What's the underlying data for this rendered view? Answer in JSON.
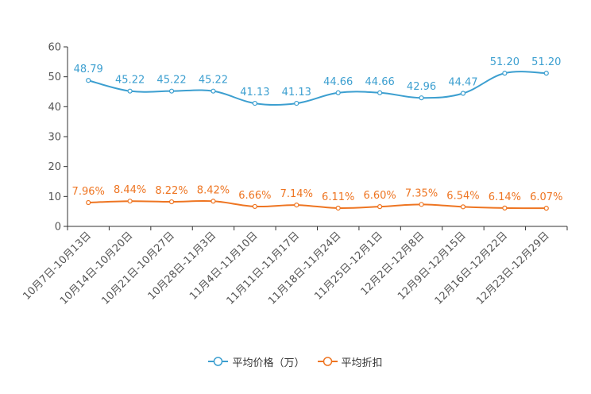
{
  "chart_data": {
    "type": "line",
    "categories": [
      "10月7日-10月13日",
      "10月14日-10月20日",
      "10月21日-10月27日",
      "10月28日-11月3日",
      "11月4日-11月10日",
      "11月11日-11月17日",
      "11月18日-11月24日",
      "11月25日-12月1日",
      "12月2日-12月8日",
      "12月9日-12月15日",
      "12月16日-12月22日",
      "12月23日-12月29日"
    ],
    "ylim": [
      0,
      60
    ],
    "yticks": [
      0,
      10,
      20,
      30,
      40,
      50,
      60
    ],
    "series": [
      {
        "name": "平均价格（万）",
        "color": "#3c9fd0",
        "values": [
          48.79,
          45.22,
          45.22,
          45.22,
          41.13,
          41.13,
          44.66,
          44.66,
          42.96,
          44.47,
          51.2,
          51.2
        ],
        "labels": [
          "48.79",
          "45.22",
          "45.22",
          "45.22",
          "41.13",
          "41.13",
          "44.66",
          "44.66",
          "42.96",
          "44.47",
          "51.20",
          "51.20"
        ]
      },
      {
        "name": "平均折扣",
        "color": "#ee7522",
        "values": [
          7.96,
          8.44,
          8.22,
          8.42,
          6.66,
          7.14,
          6.11,
          6.6,
          7.35,
          6.54,
          6.14,
          6.07
        ],
        "labels": [
          "7.96%",
          "8.44%",
          "8.22%",
          "8.42%",
          "6.66%",
          "7.14%",
          "6.11%",
          "6.60%",
          "7.35%",
          "6.54%",
          "6.14%",
          "6.07%"
        ]
      }
    ],
    "legend": "bottom-center",
    "grid": false
  }
}
